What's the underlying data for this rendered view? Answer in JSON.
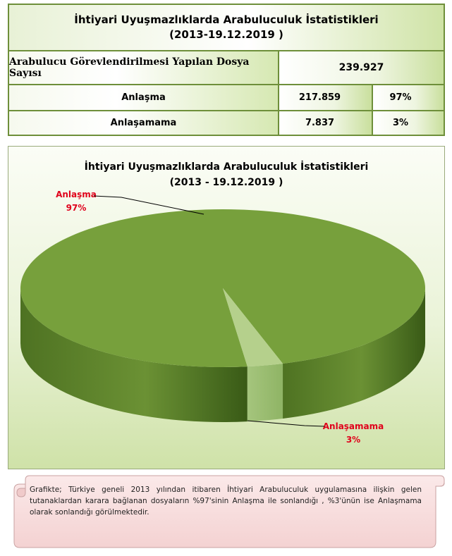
{
  "table": {
    "title_line1": "İhtiyari Uyuşmazlıklarda  Arabuluculuk İstatistikleri",
    "title_line2": "(2013-19.12.2019 )",
    "total_label": "Arabulucu Görevlendirilmesi Yapılan Dosya Sayısı",
    "total_value": "239.927",
    "rows": [
      {
        "label": "Anlaşma",
        "count": "217.859",
        "percent": "97%"
      },
      {
        "label": "Anlaşamama",
        "count": "7.837",
        "percent": "3%"
      }
    ]
  },
  "chart_data": {
    "type": "pie",
    "title": "İhtiyari Uyuşmazlıklarda  Arabuluculuk İstatistikleri",
    "subtitle": "(2013 - 19.12.2019 )",
    "slices": [
      {
        "label": "Anlaşma",
        "value": 97,
        "value_label": "97%",
        "color": "#77a03c"
      },
      {
        "label": "Anlaşamama",
        "value": 3,
        "value_label": "3%",
        "color": "#b5d08c"
      }
    ],
    "style": "3d"
  },
  "note": {
    "text": "Grafikte; Türkiye geneli 2013 yılından itibaren İhtiyari Arabuluculuk uygulamasına ilişkin gelen tutanaklardan karara bağlanan dosyaların %97'sinin Anlaşma ile sonlandığı , %3'ünün  ise Anlaşmama olarak sonlandığı görülmektedir."
  }
}
